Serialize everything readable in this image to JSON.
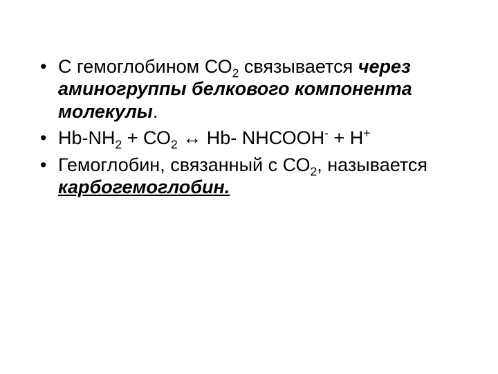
{
  "slide": {
    "background_color": "#ffffff",
    "text_color": "#000000",
    "font_family": "Arial",
    "base_fontsize_pt": 20,
    "bullets": [
      {
        "pre": "С гемоглобином СО",
        "sub1": "2",
        "mid": " связывается ",
        "em": "через аминогруппы белкового компонента молекулы",
        "post": "."
      },
      {
        "lhs_a": " Нb-NH",
        "lhs_sub": "2",
        "lhs_b": " + СО",
        "lhs_sub2": "2",
        "arrow": " ↔ ",
        "rhs_a": " Нb- NHСОOН",
        "rhs_sup1": "-",
        "rhs_b": " + Н",
        "rhs_sup2": "+"
      },
      {
        "pre": " Гемоглобин, связанный с  СО",
        "sub1": "2",
        "mid": ",  называется ",
        "em": "карбогемоглобин."
      }
    ]
  }
}
